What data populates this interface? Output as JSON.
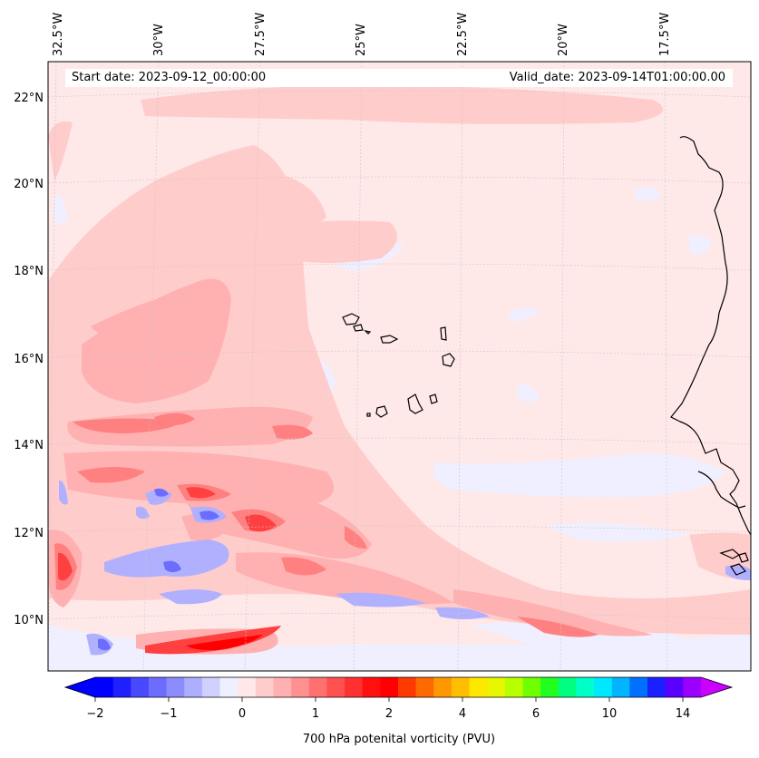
{
  "header": {
    "start_date": "Start date: 2023-09-12_00:00:00",
    "valid_date": "Valid_date: 2023-09-14T01:00:00.00"
  },
  "axes": {
    "lon_labels": [
      "32.5°W",
      "30°W",
      "27.5°W",
      "25°W",
      "22.5°W",
      "20°W",
      "17.5°W"
    ],
    "lat_labels": [
      "22°N",
      "20°N",
      "18°N",
      "16°N",
      "14°N",
      "12°N",
      "10°N"
    ]
  },
  "colorbar": {
    "title": "700 hPa potenital vorticity (PVU)",
    "tick_labels": [
      "−2",
      "−1",
      "0",
      "1",
      "2",
      "4",
      "6",
      "10",
      "14"
    ],
    "colors": [
      "#0000ff",
      "#2020ff",
      "#4848ff",
      "#6c6cff",
      "#8c8cff",
      "#aeaeff",
      "#d0d0ff",
      "#efefff",
      "#ffe8e8",
      "#ffcccc",
      "#ffb0b0",
      "#ff9090",
      "#ff7070",
      "#ff5050",
      "#ff3030",
      "#ff1010",
      "#ff0000",
      "#ff3a00",
      "#ff6a00",
      "#ff9800",
      "#ffbf00",
      "#ffe800",
      "#e8f500",
      "#b8ff00",
      "#70ff00",
      "#20ff20",
      "#00ff80",
      "#00ffc8",
      "#00e8ff",
      "#00b4ff",
      "#0070ff",
      "#1a20ff",
      "#5a00ff",
      "#9a00ff"
    ],
    "under_color": "#0000ff",
    "over_color": "#cc00ff"
  },
  "colors": {
    "ocean_background": "#ffe8e8",
    "coastline": "#000000",
    "gridline": "#c8c8c8"
  }
}
